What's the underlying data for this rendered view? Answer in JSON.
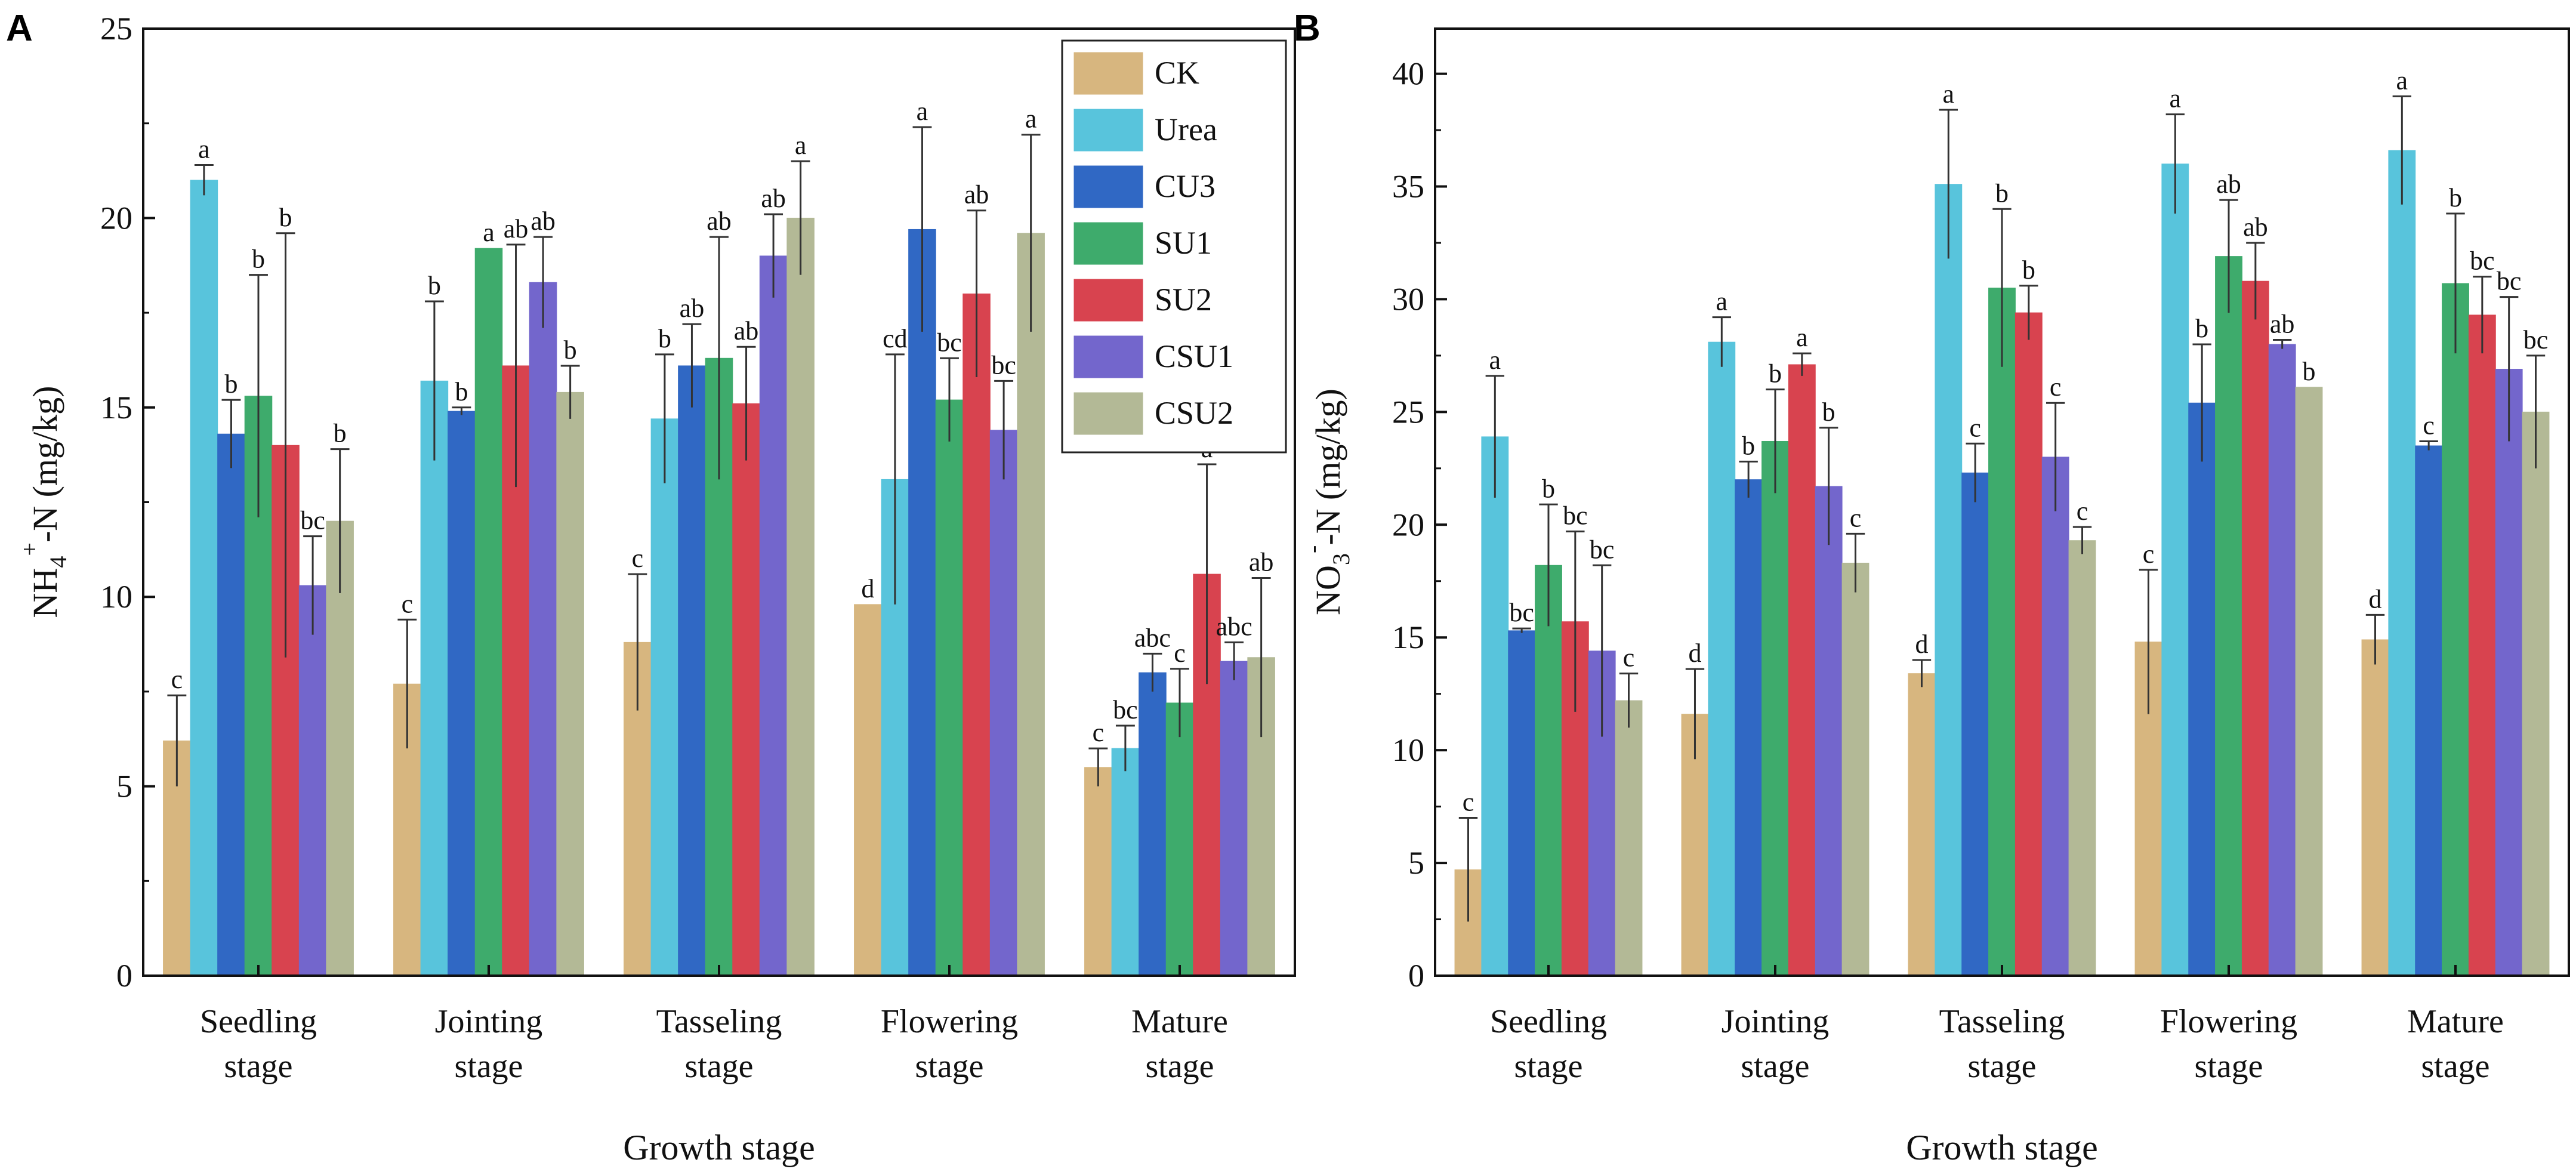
{
  "chart_data": [
    {
      "type": "bar",
      "panel_label": "A",
      "title": "",
      "xlabel": "Growth stage",
      "ylabel_main": "NH",
      "ylabel_sub": "4",
      "ylabel_sup": "+",
      "ylabel_rest": "-N (mg/kg)",
      "ylim": [
        0,
        25
      ],
      "yticks": [
        "0",
        "5",
        "10",
        "15",
        "20",
        "25"
      ],
      "grid": false,
      "legend_position": "top-right",
      "categories": [
        {
          "line1": "Seedling",
          "line2": "stage"
        },
        {
          "line1": "Jointing",
          "line2": "stage"
        },
        {
          "line1": "Tasseling",
          "line2": "stage"
        },
        {
          "line1": "Flowering",
          "line2": "stage"
        },
        {
          "line1": "Mature",
          "line2": "stage"
        }
      ],
      "series": [
        {
          "name": "CK",
          "values": [
            6.2,
            7.7,
            8.8,
            9.8,
            5.5
          ],
          "errors": [
            1.2,
            1.7,
            1.8,
            0,
            0.5
          ],
          "letters": [
            "c",
            "c",
            "c",
            "d",
            "c"
          ]
        },
        {
          "name": "Urea",
          "values": [
            21.0,
            15.7,
            14.7,
            13.1,
            6.0
          ],
          "errors": [
            0.4,
            2.1,
            1.7,
            3.3,
            0.6
          ],
          "letters": [
            "a",
            "b",
            "b",
            "cd",
            "bc"
          ]
        },
        {
          "name": "CU3",
          "values": [
            14.3,
            14.9,
            16.1,
            19.7,
            8.0
          ],
          "errors": [
            0.9,
            0.1,
            1.1,
            2.7,
            0.5
          ],
          "letters": [
            "b",
            "b",
            "ab",
            "a",
            "abc"
          ]
        },
        {
          "name": "SU1",
          "values": [
            15.3,
            19.2,
            16.3,
            15.2,
            7.2
          ],
          "errors": [
            3.2,
            0,
            3.2,
            1.1,
            0.9
          ],
          "letters": [
            "b",
            "a",
            "ab",
            "bc",
            "c"
          ]
        },
        {
          "name": "SU2",
          "values": [
            14.0,
            16.1,
            15.1,
            18.0,
            10.6
          ],
          "errors": [
            5.6,
            3.2,
            1.5,
            2.2,
            2.9
          ],
          "letters": [
            "b",
            "ab",
            "ab",
            "ab",
            "a"
          ]
        },
        {
          "name": "CSU1",
          "values": [
            10.3,
            18.3,
            19.0,
            14.4,
            8.3
          ],
          "errors": [
            1.3,
            1.2,
            1.1,
            1.3,
            0.5
          ],
          "letters": [
            "bc",
            "ab",
            "ab",
            "bc",
            "abc"
          ]
        },
        {
          "name": "CSU2",
          "values": [
            12.0,
            15.4,
            20.0,
            19.6,
            8.4
          ],
          "errors": [
            1.9,
            0.7,
            1.5,
            2.6,
            2.1
          ],
          "letters": [
            "b",
            "b",
            "a",
            "a",
            "ab"
          ]
        }
      ]
    },
    {
      "type": "bar",
      "panel_label": "B",
      "title": "",
      "xlabel": "Growth stage",
      "ylabel_main": "NO",
      "ylabel_sub": "3",
      "ylabel_sup": "-",
      "ylabel_rest": "-N (mg/kg)",
      "ylim": [
        0,
        42
      ],
      "yticks": [
        "0",
        "5",
        "10",
        "15",
        "20",
        "25",
        "30",
        "35",
        "40"
      ],
      "grid": false,
      "legend_position": "none",
      "categories": [
        {
          "line1": "Seedling",
          "line2": "stage"
        },
        {
          "line1": "Jointing",
          "line2": "stage"
        },
        {
          "line1": "Tasseling",
          "line2": "stage"
        },
        {
          "line1": "Flowering",
          "line2": "stage"
        },
        {
          "line1": "Mature",
          "line2": "stage"
        }
      ],
      "series": [
        {
          "name": "CK",
          "values": [
            4.7,
            11.6,
            13.4,
            14.8,
            14.9
          ],
          "errors": [
            2.3,
            2.0,
            0.6,
            3.2,
            1.1
          ],
          "letters": [
            "c",
            "d",
            "d",
            "c",
            "d"
          ]
        },
        {
          "name": "Urea",
          "values": [
            23.9,
            28.1,
            35.1,
            36.0,
            36.6
          ],
          "errors": [
            2.7,
            1.1,
            3.3,
            2.2,
            2.4
          ],
          "letters": [
            "a",
            "a",
            "a",
            "a",
            "a"
          ]
        },
        {
          "name": "CU3",
          "values": [
            15.3,
            22.0,
            22.3,
            25.4,
            23.5
          ],
          "errors": [
            0.1,
            0.8,
            1.3,
            2.6,
            0.2
          ],
          "letters": [
            "bc",
            "b",
            "c",
            "b",
            "c"
          ]
        },
        {
          "name": "SU1",
          "values": [
            18.2,
            23.7,
            30.5,
            31.9,
            30.7
          ],
          "errors": [
            2.7,
            2.3,
            3.5,
            2.5,
            3.1
          ],
          "letters": [
            "b",
            "b",
            "b",
            "ab",
            "b"
          ]
        },
        {
          "name": "SU2",
          "values": [
            15.7,
            27.1,
            29.4,
            30.8,
            29.3
          ],
          "errors": [
            4.0,
            0.5,
            1.2,
            1.7,
            1.7
          ],
          "letters": [
            "bc",
            "a",
            "b",
            "ab",
            "bc"
          ]
        },
        {
          "name": "CSU1",
          "values": [
            14.4,
            21.7,
            23.0,
            28.0,
            26.9
          ],
          "errors": [
            3.8,
            2.6,
            2.4,
            0.2,
            3.2
          ],
          "letters": [
            "bc",
            "b",
            "c",
            "ab",
            "bc"
          ]
        },
        {
          "name": "CSU2",
          "values": [
            12.2,
            18.3,
            19.3,
            26.1,
            25.0
          ],
          "errors": [
            1.2,
            1.3,
            0.6,
            0,
            2.5
          ],
          "letters": [
            "c",
            "c",
            "c",
            "b",
            "bc"
          ]
        }
      ]
    }
  ],
  "legend": {
    "entries": [
      "CK",
      "Urea",
      "CU3",
      "SU1",
      "SU2",
      "CSU1",
      "CSU2"
    ]
  },
  "colors": {
    "CK": "#d7b67f",
    "Urea": "#58c4dc",
    "CU3": "#3068c4",
    "SU1": "#3eab6c",
    "SU2": "#d8434f",
    "CSU1": "#7366cc",
    "CSU2": "#b3b996",
    "axis": "#111111",
    "error_bar": "#333333"
  }
}
